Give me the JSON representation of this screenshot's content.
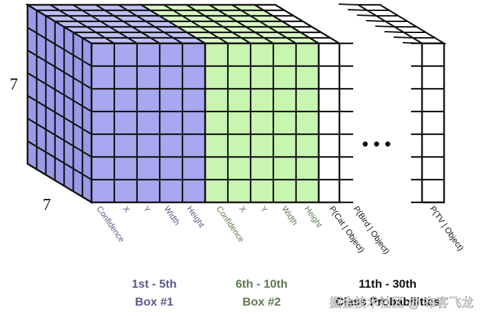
{
  "dimensions": {
    "rows": "7",
    "cols": "7"
  },
  "colors": {
    "box1": "#a8a8f0",
    "box1_top": "#c0c0f6",
    "box1_side": "#9a9ae8",
    "box2": "#c8f5b0",
    "box2_top": "#d8f8c6",
    "class": "#ffffff",
    "line": "#111111",
    "box1_text": "#5a5a8c",
    "box2_text": "#5e7a50",
    "class_text": "#111111"
  },
  "box1_columns": [
    "Confidence",
    "X",
    "Y",
    "Width",
    "Height"
  ],
  "box2_columns": [
    "Confidence",
    "X",
    "Y",
    "Width",
    "Height"
  ],
  "class_columns": [
    "P(Cat | Object)",
    "P(Bird | Object)"
  ],
  "last_class_column": "P(TV | Object)",
  "ellipsis": "• • •",
  "groups": {
    "box1": {
      "line1": "1st - 5th",
      "line2": "Box #1"
    },
    "box2": {
      "line1": "6th - 10th",
      "line2": "Box #2"
    },
    "classes": {
      "line1": "11th - 30th",
      "line2": "Class Probabilities"
    }
  },
  "watermark": "掘金技术社区 @ 布客飞龙"
}
